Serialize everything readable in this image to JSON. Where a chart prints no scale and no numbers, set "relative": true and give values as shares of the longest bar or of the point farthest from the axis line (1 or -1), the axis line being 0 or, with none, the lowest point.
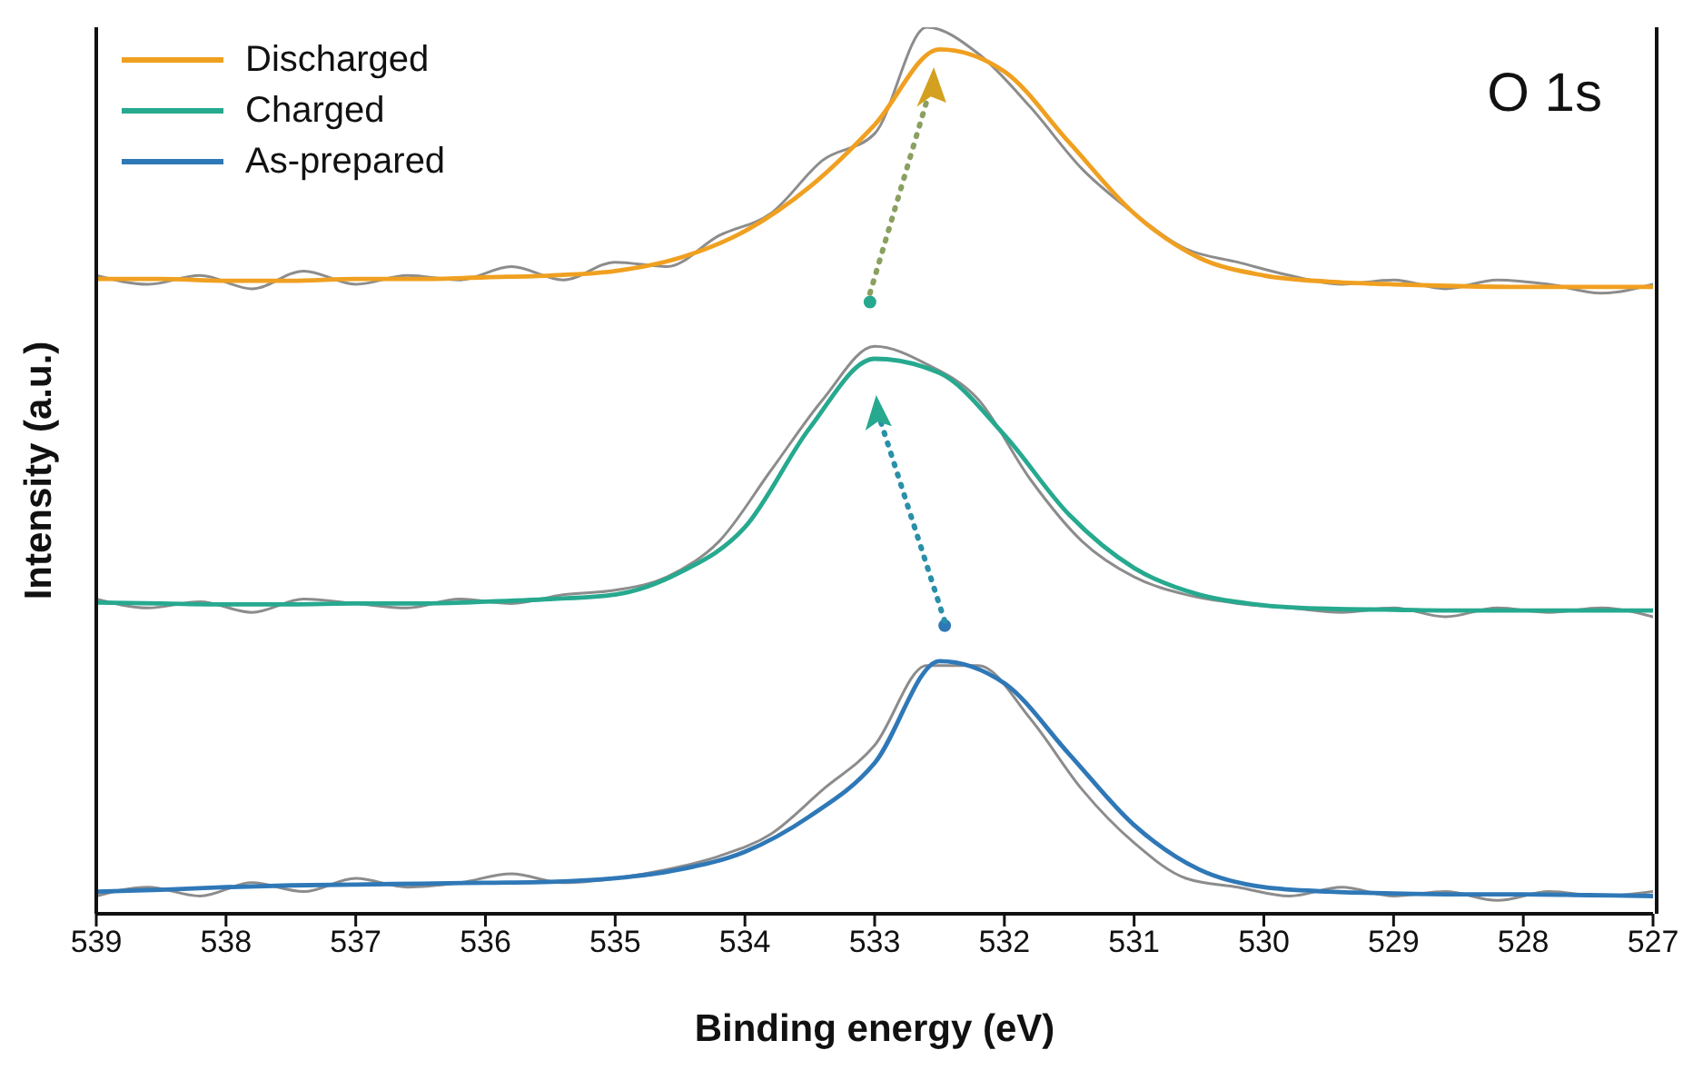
{
  "chart_data": {
    "type": "line",
    "relative": true,
    "xlabel": "Binding energy (eV)",
    "ylabel": "Intensity (a.u.)",
    "annotations": [
      "O 1s"
    ],
    "xlim": [
      539,
      527
    ],
    "xticks": [
      539,
      538,
      537,
      536,
      535,
      534,
      533,
      532,
      531,
      530,
      529,
      528,
      527
    ],
    "legend": "top left",
    "grid": false,
    "marker": "none",
    "line_style": "solid",
    "series": [
      {
        "color": "#8c8c8c",
        "x": [
          539,
          538.6,
          538.2,
          537.8,
          537.4,
          537,
          536.6,
          536.2,
          535.8,
          535.4,
          535,
          534.6,
          534.2,
          533.8,
          533.4,
          533,
          532.6,
          532.2,
          531.8,
          531.4,
          531,
          530.6,
          530.2,
          529.8,
          529.4,
          529,
          528.6,
          528.2,
          527.8,
          527.4,
          527
        ],
        "values": [
          0.02,
          0.03,
          0.02,
          0.035,
          0.025,
          0.04,
          0.03,
          0.035,
          0.045,
          0.035,
          0.04,
          0.05,
          0.065,
          0.09,
          0.14,
          0.19,
          0.28,
          0.28,
          0.22,
          0.14,
          0.08,
          0.04,
          0.03,
          0.02,
          0.03,
          0.02,
          0.025,
          0.015,
          0.025,
          0.02,
          0.025
        ]
      },
      {
        "color": "#8c8c8c",
        "x": [
          539,
          538.6,
          538.2,
          537.8,
          537.4,
          537,
          536.6,
          536.2,
          535.8,
          535.4,
          535,
          534.6,
          534.2,
          533.8,
          533.4,
          533,
          532.6,
          532.2,
          531.8,
          531.4,
          531,
          530.6,
          530.2,
          529.8,
          529.4,
          529,
          528.6,
          528.2,
          527.8,
          527.4,
          527
        ],
        "values": [
          0.355,
          0.345,
          0.352,
          0.34,
          0.355,
          0.35,
          0.345,
          0.355,
          0.35,
          0.36,
          0.365,
          0.38,
          0.42,
          0.5,
          0.58,
          0.64,
          0.62,
          0.58,
          0.49,
          0.42,
          0.38,
          0.36,
          0.35,
          0.345,
          0.34,
          0.345,
          0.335,
          0.345,
          0.34,
          0.345,
          0.335
        ]
      },
      {
        "color": "#8c8c8c",
        "x": [
          539,
          538.6,
          538.2,
          537.8,
          537.4,
          537,
          536.6,
          536.2,
          535.8,
          535.4,
          535,
          534.6,
          534.2,
          533.8,
          533.4,
          533,
          532.6,
          532.2,
          531.8,
          531.4,
          531,
          530.6,
          530.2,
          529.8,
          529.4,
          529,
          528.6,
          528.2,
          527.8,
          527.4,
          527
        ],
        "values": [
          0.72,
          0.71,
          0.72,
          0.705,
          0.725,
          0.71,
          0.72,
          0.715,
          0.73,
          0.715,
          0.735,
          0.73,
          0.765,
          0.79,
          0.85,
          0.88,
          1,
          0.97,
          0.91,
          0.84,
          0.79,
          0.75,
          0.735,
          0.72,
          0.71,
          0.715,
          0.705,
          0.715,
          0.71,
          0.7,
          0.71
        ]
      },
      {
        "name": "As-prepared",
        "color": "#2f78b7",
        "x": [
          539,
          538.5,
          538,
          537.5,
          537,
          536.5,
          536,
          535.5,
          535,
          534.5,
          534,
          533.5,
          533,
          532.5,
          532,
          531.5,
          531,
          530.5,
          530,
          529.5,
          529,
          528.5,
          528,
          527.5,
          527
        ],
        "values": [
          0.025,
          0.027,
          0.03,
          0.032,
          0.033,
          0.034,
          0.035,
          0.036,
          0.04,
          0.05,
          0.07,
          0.11,
          0.17,
          0.285,
          0.26,
          0.18,
          0.1,
          0.05,
          0.03,
          0.025,
          0.023,
          0.022,
          0.022,
          0.021,
          0.02
        ]
      },
      {
        "name": "Charged",
        "color": "#26a98f",
        "x": [
          539,
          538.5,
          538,
          537.5,
          537,
          536.5,
          536,
          535.5,
          535,
          534.5,
          534,
          533.5,
          533,
          532.5,
          532,
          531.5,
          531,
          530.5,
          530,
          529.5,
          529,
          528.5,
          528,
          527.5,
          527
        ],
        "values": [
          0.351,
          0.35,
          0.349,
          0.349,
          0.35,
          0.35,
          0.352,
          0.355,
          0.36,
          0.385,
          0.436,
          0.548,
          0.626,
          0.61,
          0.54,
          0.45,
          0.39,
          0.36,
          0.348,
          0.344,
          0.343,
          0.342,
          0.342,
          0.342,
          0.342
        ]
      },
      {
        "name": "Discharged",
        "color": "#f0a020",
        "x": [
          539,
          538.5,
          538,
          537.5,
          537,
          536.5,
          536,
          535.5,
          535,
          534.5,
          534,
          533.5,
          533,
          532.5,
          532,
          531.5,
          531,
          530.5,
          530,
          529.5,
          529,
          528.5,
          528,
          527.5,
          527
        ],
        "values": [
          0.716,
          0.716,
          0.714,
          0.714,
          0.716,
          0.716,
          0.718,
          0.72,
          0.725,
          0.74,
          0.77,
          0.82,
          0.89,
          0.975,
          0.95,
          0.87,
          0.79,
          0.74,
          0.72,
          0.713,
          0.71,
          0.708,
          0.707,
          0.707,
          0.707
        ]
      }
    ]
  }
}
